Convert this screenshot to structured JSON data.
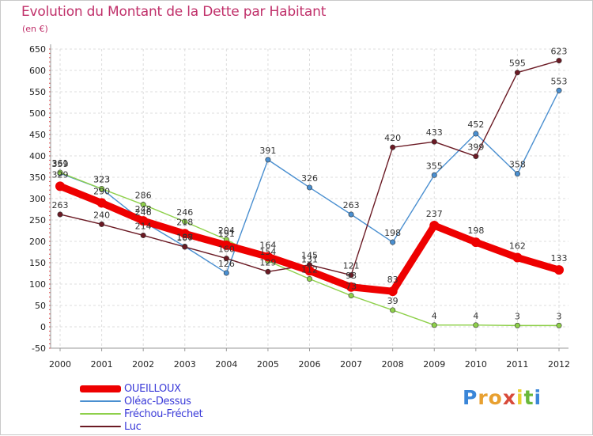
{
  "header": {
    "title": "Evolution du Montant de la Dette par Habitant",
    "subtitle": "(en €)"
  },
  "logo": {
    "letters": [
      "P",
      "r",
      "o",
      "x",
      "i",
      "t",
      "i"
    ],
    "colors": [
      "#3a86d8",
      "#e8a030",
      "#e8a030",
      "#d84a3a",
      "#e8d030",
      "#6ab83a",
      "#3a86d8"
    ]
  },
  "chart_data": {
    "type": "line",
    "title": "Evolution du Montant de la Dette par Habitant",
    "subtitle": "(en €)",
    "xlabel": "",
    "ylabel": "",
    "x": [
      "2000",
      "2001",
      "2002",
      "2003",
      "2004",
      "2005",
      "2006",
      "2007",
      "2008",
      "2009",
      "2010",
      "2011",
      "2012"
    ],
    "ylim": [
      -50,
      650
    ],
    "yticks": [
      -50,
      0,
      50,
      100,
      150,
      200,
      250,
      300,
      350,
      400,
      450,
      500,
      550,
      600,
      650
    ],
    "grid": true,
    "legend_position": "bottom-left",
    "series": [
      {
        "name": "Oléac-Dessus",
        "color": "#4a8fd0",
        "values": [
          359,
          323,
          246,
          188,
          126,
          391,
          326,
          263,
          198,
          355,
          452,
          358,
          553
        ],
        "labels": [
          "359",
          "323",
          "246",
          "188",
          "126",
          "391",
          "326",
          "263",
          "198",
          "355",
          "452",
          "358",
          "553"
        ]
      },
      {
        "name": "Fréchou-Fréchet",
        "color": "#8ed04a",
        "values": [
          361,
          323,
          286,
          246,
          204,
          154,
          112,
          73,
          39,
          4,
          4,
          3,
          3
        ],
        "labels": [
          "361",
          "323",
          "286",
          "246",
          "204",
          "154",
          "112",
          "73",
          "39",
          "4",
          "4",
          "3",
          "3"
        ]
      },
      {
        "name": "Luc",
        "color": "#6b1a24",
        "values": [
          263,
          240,
          214,
          187,
          160,
          129,
          145,
          121,
          420,
          433,
          399,
          595,
          623
        ],
        "labels": [
          "263",
          "240",
          "214",
          "187",
          "160",
          "129",
          "145",
          "121",
          "420",
          "433",
          "399",
          "595",
          "623"
        ]
      },
      {
        "name": "OUEILLOUX",
        "color": "#ee0000",
        "values": [
          329,
          290,
          248,
          218,
          191,
          164,
          131,
          93,
          83,
          237,
          198,
          162,
          133
        ],
        "labels": [
          "329",
          "290",
          "248",
          "218",
          "191",
          "164",
          "131",
          "93",
          "83",
          "237",
          "198",
          "162",
          "133"
        ]
      }
    ],
    "legend": [
      {
        "name": "OUEILLOUX",
        "color": "#ee0000"
      },
      {
        "name": "Oléac-Dessus",
        "color": "#4a8fd0"
      },
      {
        "name": "Fréchou-Fréchet",
        "color": "#8ed04a"
      },
      {
        "name": "Luc",
        "color": "#6b1a24"
      }
    ]
  }
}
